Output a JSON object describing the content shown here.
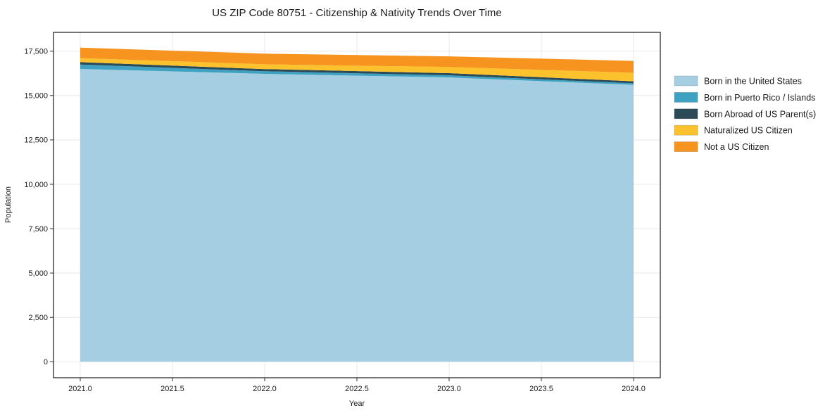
{
  "page": {
    "background": "#ffffff",
    "text_color": "#1a1a1a",
    "grid_color": "#e8e8e8",
    "spine_color": "#2a2a2a"
  },
  "chart_data": {
    "type": "area",
    "stacked": true,
    "title": "US ZIP Code 80751 - Citizenship & Nativity Trends Over Time",
    "xlabel": "Year",
    "ylabel": "Population",
    "x": [
      2021,
      2022,
      2023,
      2024
    ],
    "series": [
      {
        "name": "Born in the United States",
        "color": "#a6cee3",
        "values": [
          16500,
          16220,
          16020,
          15600
        ]
      },
      {
        "name": "Born in Puerto Rico / Islands",
        "color": "#40a2c2",
        "values": [
          250,
          150,
          120,
          90
        ]
      },
      {
        "name": "Born Abroad of US Parent(s)",
        "color": "#2a4a57",
        "values": [
          130,
          120,
          120,
          110
        ]
      },
      {
        "name": "Naturalized US Citizen",
        "color": "#fcc22d",
        "values": [
          230,
          270,
          350,
          480
        ]
      },
      {
        "name": "Not a US Citizen",
        "color": "#f7941f",
        "values": [
          590,
          600,
          600,
          670
        ]
      }
    ],
    "totals": [
      17700,
      17360,
      17210,
      16950
    ],
    "xticks": [
      2021.0,
      2021.5,
      2022.0,
      2022.5,
      2023.0,
      2023.5,
      2024.0
    ],
    "xtick_labels": [
      "2021.0",
      "2021.5",
      "2022.0",
      "2022.5",
      "2023.0",
      "2023.5",
      "2024.0"
    ],
    "yticks": [
      0,
      2500,
      5000,
      7500,
      10000,
      12500,
      15000,
      17500
    ],
    "ytick_labels": [
      "0",
      "2,500",
      "5,000",
      "7,500",
      "10,000",
      "12,500",
      "15,000",
      "17,500"
    ],
    "xlim": [
      2020.855,
      2024.145
    ],
    "ylim": [
      -900,
      18560
    ],
    "grid": true,
    "legend_position": "right-outside"
  }
}
